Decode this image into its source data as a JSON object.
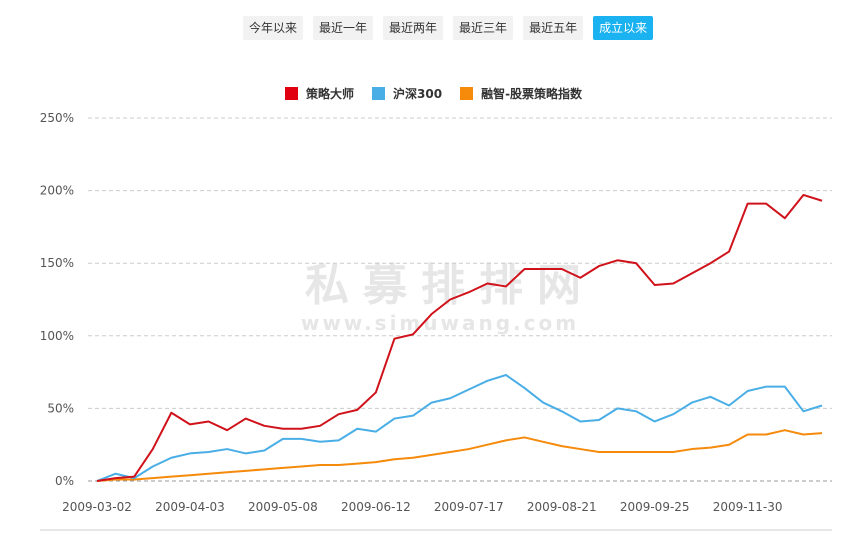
{
  "range_buttons": [
    {
      "label": "今年以来"
    },
    {
      "label": "最近一年"
    },
    {
      "label": "最近两年"
    },
    {
      "label": "最近三年"
    },
    {
      "label": "最近五年"
    },
    {
      "label": "成立以来",
      "active": true
    }
  ],
  "watermark": {
    "title": "私募排排网",
    "url": "www.simuwang.com"
  },
  "chart_data": {
    "type": "line",
    "title": "",
    "xlabel": "",
    "ylabel": "",
    "ylim": [
      0,
      250
    ],
    "yticks": [
      "0%",
      "50%",
      "100%",
      "150%",
      "200%",
      "250%"
    ],
    "ytick_values": [
      0,
      50,
      100,
      150,
      200,
      250
    ],
    "xtick_labels": [
      "2009-03-02",
      "2009-04-03",
      "2009-05-08",
      "2009-06-12",
      "2009-07-17",
      "2009-08-21",
      "2009-09-25",
      "2009-11-30"
    ],
    "xtick_every": 5,
    "grid": true,
    "legend_placement": "top-center",
    "series": [
      {
        "name": "策略大师",
        "color": "#d0121b",
        "values": [
          0,
          2,
          3,
          22,
          47,
          39,
          41,
          35,
          43,
          38,
          36,
          36,
          38,
          46,
          49,
          61,
          98,
          101,
          115,
          125,
          130,
          136,
          134,
          146,
          146,
          146,
          140,
          148,
          152,
          150,
          135,
          136,
          143,
          150,
          158,
          191,
          191,
          181,
          197,
          193
        ]
      },
      {
        "name": "沪深300",
        "color": "#4aaee6",
        "values": [
          0,
          5,
          2,
          10,
          16,
          19,
          20,
          22,
          19,
          21,
          29,
          29,
          27,
          28,
          36,
          34,
          43,
          45,
          54,
          57,
          63,
          69,
          73,
          64,
          54,
          48,
          41,
          42,
          50,
          48,
          41,
          46,
          54,
          58,
          52,
          62,
          65,
          65,
          48,
          52
        ]
      },
      {
        "name": "融智-股票策略指数",
        "color": "#f58a0b",
        "values": [
          0,
          1,
          1,
          2,
          3,
          4,
          5,
          6,
          7,
          8,
          9,
          10,
          11,
          11,
          12,
          13,
          15,
          16,
          18,
          20,
          22,
          25,
          28,
          30,
          27,
          24,
          22,
          20,
          20,
          20,
          20,
          20,
          22,
          23,
          25,
          32,
          32,
          35,
          32,
          33
        ]
      }
    ]
  }
}
